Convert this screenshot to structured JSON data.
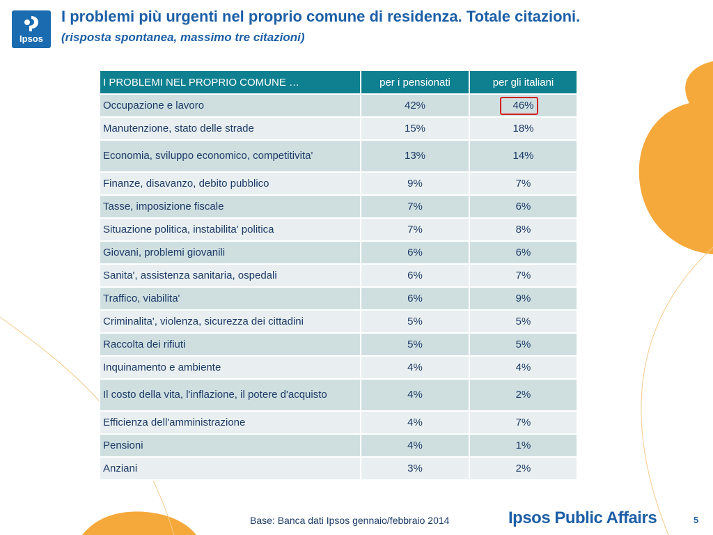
{
  "header": {
    "logo_text": "Ipsos",
    "title": "I problemi più urgenti nel proprio comune di residenza. Totale citazioni.",
    "subtitle": "(risposta spontanea, massimo tre citazioni)"
  },
  "table": {
    "columns": [
      "I PROBLEMI NEL PROPRIO COMUNE …",
      "per i pensionati",
      "per gli italiani"
    ],
    "rows": [
      {
        "label": "Occupazione e lavoro",
        "pensionati": "42%",
        "italiani": "46%"
      },
      {
        "label": "Manutenzione, stato delle strade",
        "pensionati": "15%",
        "italiani": "18%"
      },
      {
        "label": "Economia, sviluppo economico, competitivita'",
        "pensionati": "13%",
        "italiani": "14%"
      },
      {
        "label": "Finanze, disavanzo, debito pubblico",
        "pensionati": "9%",
        "italiani": "7%"
      },
      {
        "label": "Tasse, imposizione fiscale",
        "pensionati": "7%",
        "italiani": "6%"
      },
      {
        "label": "Situazione politica, instabilita' politica",
        "pensionati": "7%",
        "italiani": "8%"
      },
      {
        "label": "Giovani, problemi giovanili",
        "pensionati": "6%",
        "italiani": "6%"
      },
      {
        "label": "Sanita', assistenza sanitaria, ospedali",
        "pensionati": "6%",
        "italiani": "7%"
      },
      {
        "label": "Traffico, viabilita'",
        "pensionati": "6%",
        "italiani": "9%"
      },
      {
        "label": "Criminalita', violenza, sicurezza dei cittadini",
        "pensionati": "5%",
        "italiani": "5%"
      },
      {
        "label": "Raccolta dei rifiuti",
        "pensionati": "5%",
        "italiani": "5%"
      },
      {
        "label": "Inquinamento e ambiente",
        "pensionati": "4%",
        "italiani": "4%"
      },
      {
        "label": "Il costo della vita, l'inflazione, il potere d'acquisto",
        "pensionati": "4%",
        "italiani": "2%"
      },
      {
        "label": "Efficienza dell'amministrazione",
        "pensionati": "4%",
        "italiani": "7%"
      },
      {
        "label": "Pensioni",
        "pensionati": "4%",
        "italiani": "1%"
      },
      {
        "label": "Anziani",
        "pensionati": "3%",
        "italiani": "2%"
      }
    ]
  },
  "footer": {
    "base": "Base: Banca dati Ipsos gennaio/febbraio 2014",
    "brand": "Ipsos Public Affairs",
    "page_number": "5"
  },
  "colors": {
    "header_teal": "#0f8090",
    "title_blue": "#1c5fa6",
    "accent_orange": "#f6a93b",
    "highlight_red": "#d4201f"
  }
}
